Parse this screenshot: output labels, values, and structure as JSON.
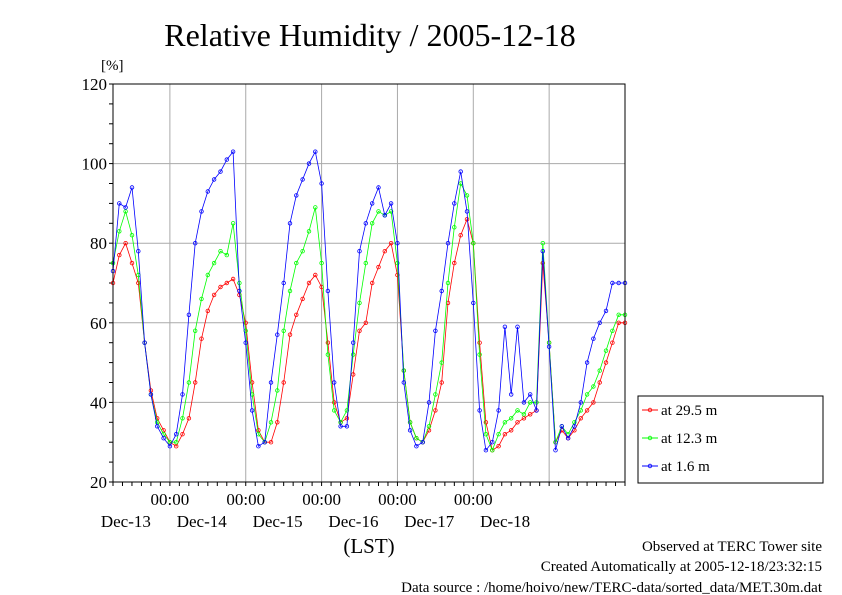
{
  "chart_data": {
    "type": "line",
    "title": "Relative Humidity / 2005-12-18",
    "ylabel": "[%]",
    "xlabel": "(LST)",
    "ylim": [
      20,
      120
    ],
    "yticks": [
      "20",
      "40",
      "60",
      "80",
      "100",
      "120"
    ],
    "xlim": [
      "2005-12-12 06:00",
      "2005-12-19 00:00"
    ],
    "xticks": [
      {
        "time": "2005-12-13 00:00",
        "label": "00:00",
        "date": "Dec-13"
      },
      {
        "time": "2005-12-14 00:00",
        "label": "00:00",
        "date": "Dec-14"
      },
      {
        "time": "2005-12-15 00:00",
        "label": "00:00",
        "date": "Dec-15"
      },
      {
        "time": "2005-12-16 00:00",
        "label": "00:00",
        "date": "Dec-16"
      },
      {
        "time": "2005-12-17 00:00",
        "label": "00:00",
        "date": "Dec-17"
      },
      {
        "time": "2005-12-18 00:00",
        "label": "",
        "date": "Dec-18"
      }
    ],
    "grid": true,
    "legend_position": "right",
    "series": [
      {
        "name": "at 29.5 m",
        "color": "#ff0000",
        "points": [
          [
            "2005-12-12 06:00",
            70
          ],
          [
            "2005-12-12 08:00",
            77
          ],
          [
            "2005-12-12 10:00",
            80
          ],
          [
            "2005-12-12 12:00",
            75
          ],
          [
            "2005-12-12 14:00",
            70
          ],
          [
            "2005-12-12 16:00",
            55
          ],
          [
            "2005-12-12 18:00",
            43
          ],
          [
            "2005-12-12 20:00",
            36
          ],
          [
            "2005-12-12 22:00",
            33
          ],
          [
            "2005-12-13 00:00",
            30
          ],
          [
            "2005-12-13 02:00",
            29
          ],
          [
            "2005-12-13 04:00",
            32
          ],
          [
            "2005-12-13 06:00",
            36
          ],
          [
            "2005-12-13 08:00",
            45
          ],
          [
            "2005-12-13 10:00",
            56
          ],
          [
            "2005-12-13 12:00",
            63
          ],
          [
            "2005-12-13 14:00",
            67
          ],
          [
            "2005-12-13 16:00",
            69
          ],
          [
            "2005-12-13 18:00",
            70
          ],
          [
            "2005-12-13 20:00",
            71
          ],
          [
            "2005-12-13 22:00",
            67
          ],
          [
            "2005-12-14 00:00",
            60
          ],
          [
            "2005-12-14 02:00",
            45
          ],
          [
            "2005-12-14 04:00",
            33
          ],
          [
            "2005-12-14 06:00",
            30
          ],
          [
            "2005-12-14 08:00",
            30
          ],
          [
            "2005-12-14 10:00",
            35
          ],
          [
            "2005-12-14 12:00",
            45
          ],
          [
            "2005-12-14 14:00",
            57
          ],
          [
            "2005-12-14 16:00",
            62
          ],
          [
            "2005-12-14 18:00",
            66
          ],
          [
            "2005-12-14 20:00",
            70
          ],
          [
            "2005-12-14 22:00",
            72
          ],
          [
            "2005-12-15 00:00",
            69
          ],
          [
            "2005-12-15 02:00",
            55
          ],
          [
            "2005-12-15 04:00",
            40
          ],
          [
            "2005-12-15 06:00",
            35
          ],
          [
            "2005-12-15 08:00",
            36
          ],
          [
            "2005-12-15 10:00",
            47
          ],
          [
            "2005-12-15 12:00",
            58
          ],
          [
            "2005-12-15 14:00",
            60
          ],
          [
            "2005-12-15 16:00",
            70
          ],
          [
            "2005-12-15 18:00",
            74
          ],
          [
            "2005-12-15 20:00",
            78
          ],
          [
            "2005-12-15 22:00",
            80
          ],
          [
            "2005-12-16 00:00",
            72
          ],
          [
            "2005-12-16 02:00",
            48
          ],
          [
            "2005-12-16 04:00",
            35
          ],
          [
            "2005-12-16 06:00",
            31
          ],
          [
            "2005-12-16 08:00",
            30
          ],
          [
            "2005-12-16 10:00",
            33
          ],
          [
            "2005-12-16 12:00",
            38
          ],
          [
            "2005-12-16 14:00",
            45
          ],
          [
            "2005-12-16 16:00",
            65
          ],
          [
            "2005-12-16 18:00",
            75
          ],
          [
            "2005-12-16 20:00",
            82
          ],
          [
            "2005-12-16 22:00",
            86
          ],
          [
            "2005-12-17 00:00",
            80
          ],
          [
            "2005-12-17 02:00",
            55
          ],
          [
            "2005-12-17 04:00",
            35
          ],
          [
            "2005-12-17 06:00",
            28
          ],
          [
            "2005-12-17 08:00",
            29
          ],
          [
            "2005-12-17 10:00",
            32
          ],
          [
            "2005-12-17 12:00",
            33
          ],
          [
            "2005-12-17 14:00",
            35
          ],
          [
            "2005-12-17 16:00",
            36
          ],
          [
            "2005-12-17 18:00",
            37
          ],
          [
            "2005-12-17 20:00",
            38
          ],
          [
            "2005-12-17 22:00",
            75
          ],
          [
            "2005-12-18 00:00",
            55
          ],
          [
            "2005-12-18 02:00",
            30
          ],
          [
            "2005-12-18 04:00",
            33
          ],
          [
            "2005-12-18 06:00",
            31
          ],
          [
            "2005-12-18 08:00",
            33
          ],
          [
            "2005-12-18 10:00",
            36
          ],
          [
            "2005-12-18 12:00",
            38
          ],
          [
            "2005-12-18 14:00",
            40
          ],
          [
            "2005-12-18 16:00",
            45
          ],
          [
            "2005-12-18 18:00",
            50
          ],
          [
            "2005-12-18 20:00",
            55
          ],
          [
            "2005-12-18 22:00",
            60
          ],
          [
            "2005-12-19 00:00",
            60
          ]
        ]
      },
      {
        "name": "at 12.3 m",
        "color": "#00ff00",
        "points": [
          [
            "2005-12-12 06:00",
            75
          ],
          [
            "2005-12-12 08:00",
            83
          ],
          [
            "2005-12-12 10:00",
            88
          ],
          [
            "2005-12-12 12:00",
            82
          ],
          [
            "2005-12-12 14:00",
            72
          ],
          [
            "2005-12-12 16:00",
            55
          ],
          [
            "2005-12-12 18:00",
            42
          ],
          [
            "2005-12-12 20:00",
            35
          ],
          [
            "2005-12-12 22:00",
            32
          ],
          [
            "2005-12-13 00:00",
            30
          ],
          [
            "2005-12-13 02:00",
            30
          ],
          [
            "2005-12-13 04:00",
            36
          ],
          [
            "2005-12-13 06:00",
            45
          ],
          [
            "2005-12-13 08:00",
            58
          ],
          [
            "2005-12-13 10:00",
            66
          ],
          [
            "2005-12-13 12:00",
            72
          ],
          [
            "2005-12-13 14:00",
            75
          ],
          [
            "2005-12-13 16:00",
            78
          ],
          [
            "2005-12-13 18:00",
            77
          ],
          [
            "2005-12-13 20:00",
            85
          ],
          [
            "2005-12-13 22:00",
            70
          ],
          [
            "2005-12-14 00:00",
            58
          ],
          [
            "2005-12-14 02:00",
            42
          ],
          [
            "2005-12-14 04:00",
            32
          ],
          [
            "2005-12-14 06:00",
            30
          ],
          [
            "2005-12-14 08:00",
            35
          ],
          [
            "2005-12-14 10:00",
            43
          ],
          [
            "2005-12-14 12:00",
            58
          ],
          [
            "2005-12-14 14:00",
            68
          ],
          [
            "2005-12-14 16:00",
            75
          ],
          [
            "2005-12-14 18:00",
            78
          ],
          [
            "2005-12-14 20:00",
            83
          ],
          [
            "2005-12-14 22:00",
            89
          ],
          [
            "2005-12-15 00:00",
            75
          ],
          [
            "2005-12-15 02:00",
            52
          ],
          [
            "2005-12-15 04:00",
            38
          ],
          [
            "2005-12-15 06:00",
            35
          ],
          [
            "2005-12-15 08:00",
            38
          ],
          [
            "2005-12-15 10:00",
            52
          ],
          [
            "2005-12-15 12:00",
            65
          ],
          [
            "2005-12-15 14:00",
            75
          ],
          [
            "2005-12-15 16:00",
            85
          ],
          [
            "2005-12-15 18:00",
            88
          ],
          [
            "2005-12-15 20:00",
            87
          ],
          [
            "2005-12-15 22:00",
            88
          ],
          [
            "2005-12-16 00:00",
            75
          ],
          [
            "2005-12-16 02:00",
            48
          ],
          [
            "2005-12-16 04:00",
            35
          ],
          [
            "2005-12-16 06:00",
            31
          ],
          [
            "2005-12-16 08:00",
            30
          ],
          [
            "2005-12-16 10:00",
            34
          ],
          [
            "2005-12-16 12:00",
            42
          ],
          [
            "2005-12-16 14:00",
            50
          ],
          [
            "2005-12-16 16:00",
            70
          ],
          [
            "2005-12-16 18:00",
            84
          ],
          [
            "2005-12-16 20:00",
            95
          ],
          [
            "2005-12-16 22:00",
            92
          ],
          [
            "2005-12-17 00:00",
            80
          ],
          [
            "2005-12-17 02:00",
            52
          ],
          [
            "2005-12-17 04:00",
            32
          ],
          [
            "2005-12-17 06:00",
            28
          ],
          [
            "2005-12-17 08:00",
            32
          ],
          [
            "2005-12-17 10:00",
            35
          ],
          [
            "2005-12-17 12:00",
            36
          ],
          [
            "2005-12-17 14:00",
            38
          ],
          [
            "2005-12-17 16:00",
            37
          ],
          [
            "2005-12-17 18:00",
            40
          ],
          [
            "2005-12-17 20:00",
            40
          ],
          [
            "2005-12-17 22:00",
            80
          ],
          [
            "2005-12-18 00:00",
            55
          ],
          [
            "2005-12-18 02:00",
            30
          ],
          [
            "2005-12-18 04:00",
            34
          ],
          [
            "2005-12-18 06:00",
            32
          ],
          [
            "2005-12-18 08:00",
            35
          ],
          [
            "2005-12-18 10:00",
            38
          ],
          [
            "2005-12-18 12:00",
            42
          ],
          [
            "2005-12-18 14:00",
            44
          ],
          [
            "2005-12-18 16:00",
            48
          ],
          [
            "2005-12-18 18:00",
            53
          ],
          [
            "2005-12-18 20:00",
            58
          ],
          [
            "2005-12-18 22:00",
            62
          ],
          [
            "2005-12-19 00:00",
            62
          ]
        ]
      },
      {
        "name": "at 1.6 m",
        "color": "#0000ff",
        "points": [
          [
            "2005-12-12 06:00",
            73
          ],
          [
            "2005-12-12 08:00",
            90
          ],
          [
            "2005-12-12 10:00",
            89
          ],
          [
            "2005-12-12 12:00",
            94
          ],
          [
            "2005-12-12 14:00",
            78
          ],
          [
            "2005-12-12 16:00",
            55
          ],
          [
            "2005-12-12 18:00",
            42
          ],
          [
            "2005-12-12 20:00",
            34
          ],
          [
            "2005-12-12 22:00",
            31
          ],
          [
            "2005-12-13 00:00",
            29
          ],
          [
            "2005-12-13 02:00",
            32
          ],
          [
            "2005-12-13 04:00",
            42
          ],
          [
            "2005-12-13 06:00",
            62
          ],
          [
            "2005-12-13 08:00",
            80
          ],
          [
            "2005-12-13 10:00",
            88
          ],
          [
            "2005-12-13 12:00",
            93
          ],
          [
            "2005-12-13 14:00",
            96
          ],
          [
            "2005-12-13 16:00",
            98
          ],
          [
            "2005-12-13 18:00",
            101
          ],
          [
            "2005-12-13 20:00",
            103
          ],
          [
            "2005-12-13 22:00",
            68
          ],
          [
            "2005-12-14 00:00",
            55
          ],
          [
            "2005-12-14 02:00",
            38
          ],
          [
            "2005-12-14 04:00",
            29
          ],
          [
            "2005-12-14 06:00",
            30
          ],
          [
            "2005-12-14 08:00",
            45
          ],
          [
            "2005-12-14 10:00",
            57
          ],
          [
            "2005-12-14 12:00",
            70
          ],
          [
            "2005-12-14 14:00",
            85
          ],
          [
            "2005-12-14 16:00",
            92
          ],
          [
            "2005-12-14 18:00",
            96
          ],
          [
            "2005-12-14 20:00",
            100
          ],
          [
            "2005-12-14 22:00",
            103
          ],
          [
            "2005-12-15 00:00",
            95
          ],
          [
            "2005-12-15 02:00",
            68
          ],
          [
            "2005-12-15 04:00",
            45
          ],
          [
            "2005-12-15 06:00",
            34
          ],
          [
            "2005-12-15 08:00",
            34
          ],
          [
            "2005-12-15 10:00",
            55
          ],
          [
            "2005-12-15 12:00",
            78
          ],
          [
            "2005-12-15 14:00",
            85
          ],
          [
            "2005-12-15 16:00",
            90
          ],
          [
            "2005-12-15 18:00",
            94
          ],
          [
            "2005-12-15 20:00",
            87
          ],
          [
            "2005-12-15 22:00",
            90
          ],
          [
            "2005-12-16 00:00",
            80
          ],
          [
            "2005-12-16 02:00",
            45
          ],
          [
            "2005-12-16 04:00",
            33
          ],
          [
            "2005-12-16 06:00",
            29
          ],
          [
            "2005-12-16 08:00",
            30
          ],
          [
            "2005-12-16 10:00",
            40
          ],
          [
            "2005-12-16 12:00",
            58
          ],
          [
            "2005-12-16 14:00",
            68
          ],
          [
            "2005-12-16 16:00",
            80
          ],
          [
            "2005-12-16 18:00",
            90
          ],
          [
            "2005-12-16 20:00",
            98
          ],
          [
            "2005-12-16 22:00",
            88
          ],
          [
            "2005-12-17 00:00",
            65
          ],
          [
            "2005-12-17 02:00",
            38
          ],
          [
            "2005-12-17 04:00",
            28
          ],
          [
            "2005-12-17 06:00",
            30
          ],
          [
            "2005-12-17 08:00",
            38
          ],
          [
            "2005-12-17 10:00",
            59
          ],
          [
            "2005-12-17 12:00",
            42
          ],
          [
            "2005-12-17 14:00",
            59
          ],
          [
            "2005-12-17 16:00",
            40
          ],
          [
            "2005-12-17 18:00",
            42
          ],
          [
            "2005-12-17 20:00",
            38
          ],
          [
            "2005-12-17 22:00",
            78
          ],
          [
            "2005-12-18 00:00",
            54
          ],
          [
            "2005-12-18 02:00",
            28
          ],
          [
            "2005-12-18 04:00",
            34
          ],
          [
            "2005-12-18 06:00",
            31
          ],
          [
            "2005-12-18 08:00",
            34
          ],
          [
            "2005-12-18 10:00",
            40
          ],
          [
            "2005-12-18 12:00",
            50
          ],
          [
            "2005-12-18 14:00",
            56
          ],
          [
            "2005-12-18 16:00",
            60
          ],
          [
            "2005-12-18 18:00",
            63
          ],
          [
            "2005-12-18 20:00",
            70
          ],
          [
            "2005-12-18 22:00",
            70
          ],
          [
            "2005-12-19 00:00",
            70
          ]
        ]
      }
    ]
  },
  "footer": {
    "line1": "Observed at TERC Tower site",
    "line2": "Created Automatically at 2005-12-18/23:32:15",
    "line3": "Data source : /home/hoivo/new/TERC-data/sorted_data/MET.30m.dat"
  }
}
